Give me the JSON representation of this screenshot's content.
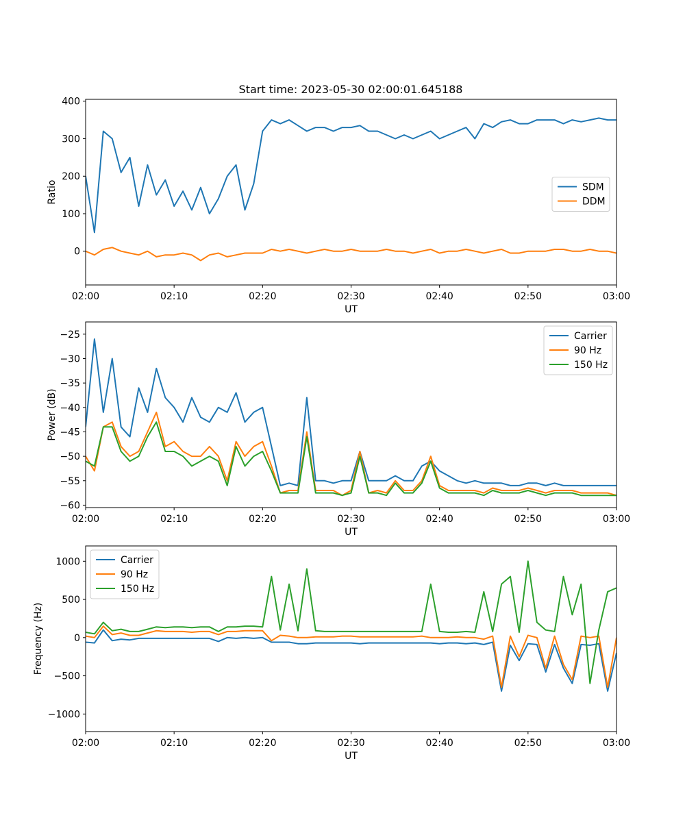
{
  "figure": {
    "title": "Start time: 2023-05-30 02:00:01.645188"
  },
  "chart_data": [
    {
      "type": "line",
      "title": "Start time: 2023-05-30 02:00:01.645188",
      "xlabel": "UT",
      "ylabel": "Ratio",
      "xlim": [
        "02:00",
        "03:00"
      ],
      "xticks": [
        "02:00",
        "02:10",
        "02:20",
        "02:30",
        "02:40",
        "02:50",
        "03:00"
      ],
      "ylim": [
        -90,
        405
      ],
      "yticks": [
        0,
        100,
        200,
        300,
        400
      ],
      "ytick_labels": [
        "0",
        "100",
        "200",
        "300",
        "400"
      ],
      "grid": false,
      "legend_position": "center-right",
      "x": [
        "02:00",
        "02:01",
        "02:02",
        "02:03",
        "02:04",
        "02:05",
        "02:06",
        "02:07",
        "02:08",
        "02:09",
        "02:10",
        "02:11",
        "02:12",
        "02:13",
        "02:14",
        "02:15",
        "02:16",
        "02:17",
        "02:18",
        "02:19",
        "02:20",
        "02:21",
        "02:22",
        "02:23",
        "02:24",
        "02:25",
        "02:26",
        "02:27",
        "02:28",
        "02:29",
        "02:30",
        "02:31",
        "02:32",
        "02:33",
        "02:34",
        "02:35",
        "02:36",
        "02:37",
        "02:38",
        "02:39",
        "02:40",
        "02:41",
        "02:42",
        "02:43",
        "02:44",
        "02:45",
        "02:46",
        "02:47",
        "02:48",
        "02:49",
        "02:50",
        "02:51",
        "02:52",
        "02:53",
        "02:54",
        "02:55",
        "02:56",
        "02:57",
        "02:58",
        "02:59",
        "03:00"
      ],
      "series": [
        {
          "name": "SDM",
          "color": "#1f77b4",
          "values": [
            200,
            50,
            320,
            300,
            210,
            250,
            120,
            230,
            150,
            190,
            120,
            160,
            110,
            170,
            100,
            140,
            200,
            230,
            110,
            180,
            320,
            350,
            340,
            350,
            335,
            320,
            330,
            330,
            320,
            330,
            330,
            335,
            320,
            320,
            310,
            300,
            310,
            300,
            310,
            320,
            300,
            310,
            320,
            330,
            300,
            340,
            330,
            345,
            350,
            340,
            340,
            350,
            350,
            350,
            340,
            350,
            345,
            350,
            355,
            350,
            350
          ]
        },
        {
          "name": "DDM",
          "color": "#ff7f0e",
          "values": [
            0,
            -10,
            5,
            10,
            0,
            -5,
            -10,
            0,
            -15,
            -10,
            -10,
            -5,
            -10,
            -25,
            -10,
            -5,
            -15,
            -10,
            -5,
            -5,
            -5,
            5,
            0,
            5,
            0,
            -5,
            0,
            5,
            0,
            0,
            5,
            0,
            0,
            0,
            5,
            0,
            0,
            -5,
            0,
            5,
            -5,
            0,
            0,
            5,
            0,
            -5,
            0,
            5,
            -5,
            -5,
            0,
            0,
            0,
            5,
            5,
            0,
            0,
            5,
            0,
            0,
            -5
          ]
        }
      ]
    },
    {
      "type": "line",
      "xlabel": "UT",
      "ylabel": "Power (dB)",
      "xlim": [
        "02:00",
        "03:00"
      ],
      "xticks": [
        "02:00",
        "02:10",
        "02:20",
        "02:30",
        "02:40",
        "02:50",
        "03:00"
      ],
      "ylim": [
        -60.5,
        -22.5
      ],
      "yticks": [
        -60,
        -55,
        -50,
        -45,
        -40,
        -35,
        -30,
        -25
      ],
      "ytick_labels": [
        "−60",
        "−55",
        "−50",
        "−45",
        "−40",
        "−35",
        "−30",
        "−25"
      ],
      "grid": false,
      "legend_position": "top-right",
      "x": [
        "02:00",
        "02:01",
        "02:02",
        "02:03",
        "02:04",
        "02:05",
        "02:06",
        "02:07",
        "02:08",
        "02:09",
        "02:10",
        "02:11",
        "02:12",
        "02:13",
        "02:14",
        "02:15",
        "02:16",
        "02:17",
        "02:18",
        "02:19",
        "02:20",
        "02:21",
        "02:22",
        "02:23",
        "02:24",
        "02:25",
        "02:26",
        "02:27",
        "02:28",
        "02:29",
        "02:30",
        "02:31",
        "02:32",
        "02:33",
        "02:34",
        "02:35",
        "02:36",
        "02:37",
        "02:38",
        "02:39",
        "02:40",
        "02:41",
        "02:42",
        "02:43",
        "02:44",
        "02:45",
        "02:46",
        "02:47",
        "02:48",
        "02:49",
        "02:50",
        "02:51",
        "02:52",
        "02:53",
        "02:54",
        "02:55",
        "02:56",
        "02:57",
        "02:58",
        "02:59",
        "03:00"
      ],
      "series": [
        {
          "name": "Carrier",
          "color": "#1f77b4",
          "values": [
            -44,
            -26,
            -41,
            -30,
            -44,
            -46,
            -36,
            -41,
            -32,
            -38,
            -40,
            -43,
            -38,
            -42,
            -43,
            -40,
            -41,
            -37,
            -43,
            -41,
            -40,
            -48,
            -56,
            -55.5,
            -56,
            -38,
            -55,
            -55,
            -55.5,
            -55,
            -55,
            -49,
            -55,
            -55,
            -55,
            -54,
            -55,
            -55,
            -52,
            -51,
            -53,
            -54,
            -55,
            -55.5,
            -55,
            -55.5,
            -55.5,
            -55.5,
            -56,
            -56,
            -55.5,
            -55.5,
            -56,
            -55.5,
            -56,
            -56,
            -56,
            -56,
            -56,
            -56,
            -56
          ]
        },
        {
          "name": "90 Hz",
          "color": "#ff7f0e",
          "values": [
            -50,
            -53,
            -44,
            -43,
            -48,
            -50,
            -49,
            -45,
            -41,
            -48,
            -47,
            -49,
            -50,
            -50,
            -48,
            -50,
            -55,
            -47,
            -50,
            -48,
            -47,
            -52,
            -57.5,
            -57,
            -57,
            -45,
            -57,
            -57,
            -57,
            -58,
            -57,
            -49,
            -57.5,
            -57,
            -57.5,
            -55,
            -57,
            -57,
            -55,
            -50,
            -56,
            -57,
            -57,
            -57,
            -57,
            -57.5,
            -56.5,
            -57,
            -57,
            -57,
            -56.5,
            -57,
            -57.5,
            -57,
            -57,
            -57,
            -57.5,
            -57.5,
            -57.5,
            -57.5,
            -58
          ]
        },
        {
          "name": "150 Hz",
          "color": "#2ca02c",
          "values": [
            -51,
            -52,
            -44,
            -44,
            -49,
            -51,
            -50,
            -46,
            -43,
            -49,
            -49,
            -50,
            -52,
            -51,
            -50,
            -51,
            -56,
            -48,
            -52,
            -50,
            -49,
            -53,
            -57.5,
            -57.5,
            -57.5,
            -46,
            -57.5,
            -57.5,
            -57.5,
            -58,
            -57.5,
            -50,
            -57.5,
            -57.5,
            -58,
            -55.5,
            -57.5,
            -57.5,
            -55.5,
            -51,
            -56.5,
            -57.5,
            -57.5,
            -57.5,
            -57.5,
            -58,
            -57,
            -57.5,
            -57.5,
            -57.5,
            -57,
            -57.5,
            -58,
            -57.5,
            -57.5,
            -57.5,
            -58,
            -58,
            -58,
            -58,
            -58
          ]
        }
      ]
    },
    {
      "type": "line",
      "xlabel": "UT",
      "ylabel": "Frequency (Hz)",
      "xlim": [
        "02:00",
        "03:00"
      ],
      "xticks": [
        "02:00",
        "02:10",
        "02:20",
        "02:30",
        "02:40",
        "02:50",
        "03:00"
      ],
      "ylim": [
        -1230,
        1200
      ],
      "yticks": [
        -1000,
        -500,
        0,
        500,
        1000
      ],
      "ytick_labels": [
        "−1000",
        "−500",
        "0",
        "500",
        "1000"
      ],
      "grid": false,
      "legend_position": "top-left",
      "x": [
        "02:00",
        "02:01",
        "02:02",
        "02:03",
        "02:04",
        "02:05",
        "02:06",
        "02:07",
        "02:08",
        "02:09",
        "02:10",
        "02:11",
        "02:12",
        "02:13",
        "02:14",
        "02:15",
        "02:16",
        "02:17",
        "02:18",
        "02:19",
        "02:20",
        "02:21",
        "02:22",
        "02:23",
        "02:24",
        "02:25",
        "02:26",
        "02:27",
        "02:28",
        "02:29",
        "02:30",
        "02:31",
        "02:32",
        "02:33",
        "02:34",
        "02:35",
        "02:36",
        "02:37",
        "02:38",
        "02:39",
        "02:40",
        "02:41",
        "02:42",
        "02:43",
        "02:44",
        "02:45",
        "02:46",
        "02:47",
        "02:48",
        "02:49",
        "02:50",
        "02:51",
        "02:52",
        "02:53",
        "02:54",
        "02:55",
        "02:56",
        "02:57",
        "02:58",
        "02:59",
        "03:00"
      ],
      "series": [
        {
          "name": "Carrier",
          "color": "#1f77b4",
          "values": [
            -60,
            -70,
            100,
            -40,
            -20,
            -30,
            -10,
            -10,
            -10,
            -10,
            -10,
            -10,
            -10,
            -10,
            -10,
            -50,
            0,
            -10,
            0,
            -10,
            0,
            -60,
            -60,
            -60,
            -80,
            -80,
            -70,
            -70,
            -70,
            -70,
            -70,
            -80,
            -70,
            -70,
            -70,
            -70,
            -70,
            -70,
            -70,
            -70,
            -80,
            -70,
            -70,
            -80,
            -70,
            -90,
            -60,
            -700,
            -100,
            -300,
            -80,
            -90,
            -450,
            -90,
            -400,
            -600,
            -90,
            -100,
            -80,
            -700,
            -200
          ]
        },
        {
          "name": "90 Hz",
          "color": "#ff7f0e",
          "values": [
            20,
            0,
            150,
            40,
            60,
            30,
            30,
            60,
            90,
            80,
            80,
            80,
            70,
            80,
            80,
            40,
            80,
            80,
            90,
            90,
            90,
            -40,
            30,
            20,
            0,
            0,
            10,
            10,
            10,
            20,
            20,
            10,
            10,
            10,
            10,
            10,
            10,
            10,
            20,
            0,
            0,
            0,
            10,
            0,
            0,
            -20,
            20,
            -650,
            20,
            -250,
            30,
            0,
            -400,
            20,
            -350,
            -550,
            20,
            0,
            20,
            -650,
            0
          ]
        },
        {
          "name": "150 Hz",
          "color": "#2ca02c",
          "values": [
            70,
            50,
            200,
            90,
            110,
            80,
            80,
            110,
            140,
            130,
            140,
            140,
            130,
            140,
            140,
            80,
            140,
            140,
            150,
            150,
            140,
            800,
            100,
            700,
            90,
            900,
            90,
            80,
            80,
            80,
            80,
            80,
            80,
            80,
            80,
            80,
            80,
            80,
            80,
            700,
            80,
            70,
            70,
            80,
            70,
            600,
            80,
            700,
            800,
            70,
            1000,
            200,
            100,
            80,
            800,
            300,
            700,
            -600,
            100,
            600,
            650
          ]
        }
      ]
    }
  ]
}
